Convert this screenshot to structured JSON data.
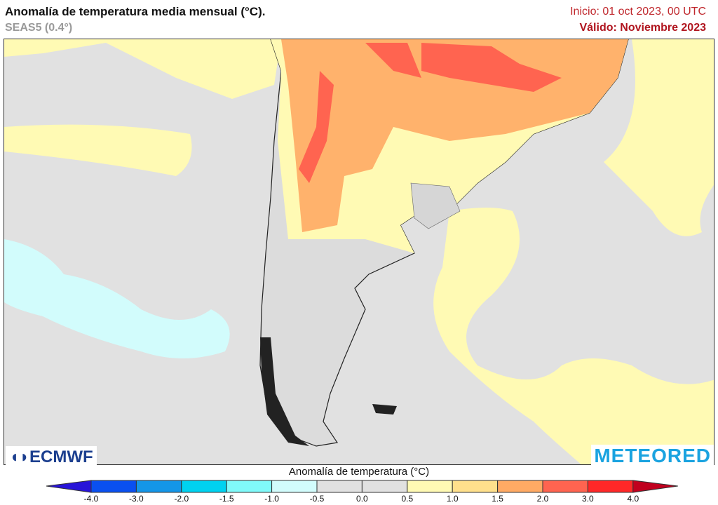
{
  "header": {
    "title": "Anomalía de temperatura media mensual (°C).",
    "model": "SEAS5 (0.4°)",
    "init": "Inicio: 01 oct 2023, 00 UTC",
    "valid": "Válido: Noviembre 2023"
  },
  "logos": {
    "left": "ECMWF",
    "right": "METEORED"
  },
  "colorbar": {
    "title": "Anomalía de temperatura (°C)",
    "ticks": [
      "-4.0",
      "-3.0",
      "-2.0",
      "-1.5",
      "-1.0",
      "-0.5",
      "0.0",
      "0.5",
      "1.0",
      "1.5",
      "2.0",
      "3.0",
      "4.0"
    ],
    "colors": [
      "#0a50f0",
      "#1496e8",
      "#00d2f0",
      "#80fafa",
      "#d2fcfc",
      "#e1e1e1",
      "#e1e1e1",
      "#fffab4",
      "#ffe08c",
      "#ffaa64",
      "#ff6450",
      "#ff2828"
    ],
    "under_color": "#2814d8",
    "over_color": "#c0001e"
  }
}
